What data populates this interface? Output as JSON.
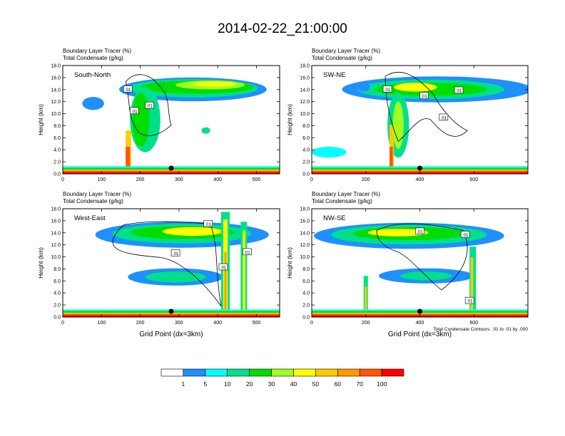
{
  "page": {
    "title": "2014-02-22_21:00:00",
    "footnote": "Total Condensate Contours: .01 to .01 by .000"
  },
  "colorbar": {
    "colors": [
      "#ffffff",
      "#1e90ff",
      "#00ffff",
      "#00e08a",
      "#00dd00",
      "#a0ff20",
      "#ffff00",
      "#ffcc00",
      "#ff9900",
      "#ff5500",
      "#ff0000"
    ],
    "labels": [
      "1",
      "5",
      "10",
      "20",
      "30",
      "40",
      "50",
      "60",
      "70",
      "100"
    ]
  },
  "chart_data": [
    {
      "type": "heatmap",
      "panel_label": "South-North",
      "header_lines": [
        "Boundary Layer Tracer    (%)",
        "Total Condensate    (g/kg)"
      ],
      "ylabel": "Height (km)",
      "xlabel": "",
      "xlim": [
        0,
        560
      ],
      "ylim": [
        0,
        18
      ],
      "xticks": [
        "0",
        "100",
        "200",
        "300",
        "400",
        "500"
      ],
      "xtick_values": [
        0,
        100,
        200,
        300,
        400,
        500
      ],
      "yticks": [
        "0.0",
        "2.0",
        "4.0",
        "6.0",
        "8.0",
        "10.0",
        "12.0",
        "14.0",
        "16.0",
        "18.0"
      ],
      "contour_labels": [
        ".01",
        ".01",
        ".01"
      ],
      "marker_x": 280
    },
    {
      "type": "heatmap",
      "panel_label": "SW-NE",
      "header_lines": [
        "Boundary Layer Tracer    (%)",
        "Total Condensate    (g/kg)"
      ],
      "ylabel": "Height (km)",
      "xlabel": "",
      "xlim": [
        0,
        800
      ],
      "ylim": [
        0,
        18
      ],
      "xticks": [
        "0",
        "200",
        "400",
        "600"
      ],
      "xtick_values": [
        0,
        200,
        400,
        600
      ],
      "yticks": [
        "0.0",
        "2.0",
        "4.0",
        "6.0",
        "8.0",
        "10.0",
        "12.0",
        "14.0",
        "16.0",
        "18.0"
      ],
      "contour_labels": [
        ".01",
        ".01",
        ".01",
        ".01"
      ],
      "marker_x": 400
    },
    {
      "type": "heatmap",
      "panel_label": "West-East",
      "header_lines": [
        "Boundary Layer Tracer    (%)",
        "Total Condensate    (g/kg)"
      ],
      "ylabel": "Height (km)",
      "xlabel": "Grid Point (dx=3km)",
      "xlim": [
        0,
        560
      ],
      "ylim": [
        0,
        18
      ],
      "xticks": [
        "0",
        "100",
        "200",
        "300",
        "400",
        "500"
      ],
      "xtick_values": [
        0,
        100,
        200,
        300,
        400,
        500
      ],
      "yticks": [
        "0.0",
        "2.0",
        "4.0",
        "6.0",
        "8.0",
        "10.0",
        "12.0",
        "14.0",
        "16.0",
        "18.0"
      ],
      "contour_labels": [
        ".01",
        ".01",
        ".01",
        ".01"
      ],
      "marker_x": 280
    },
    {
      "type": "heatmap",
      "panel_label": "NW-SE",
      "header_lines": [
        "Boundary Layer Tracer    (%)",
        "Total Condensate    (g/kg)"
      ],
      "ylabel": "Height (km)",
      "xlabel": "Grid Point (dx=3km)",
      "xlim": [
        0,
        800
      ],
      "ylim": [
        0,
        18
      ],
      "xticks": [
        "0",
        "200",
        "400",
        "600"
      ],
      "xtick_values": [
        0,
        200,
        400,
        600
      ],
      "yticks": [
        "0.0",
        "2.0",
        "4.0",
        "6.0",
        "8.0",
        "10.0",
        "12.0",
        "14.0",
        "16.0",
        "18.0"
      ],
      "contour_labels": [
        ".01",
        ".01",
        ".01"
      ],
      "marker_x": 400
    }
  ]
}
